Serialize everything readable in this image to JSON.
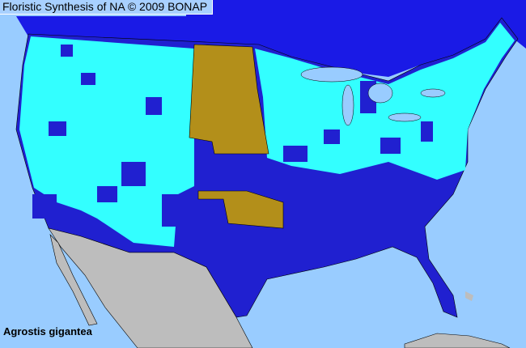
{
  "header": {
    "title": "Floristic Synthesis of NA © 2009 BONAP"
  },
  "species": {
    "name": "Agrostis gigantea"
  },
  "colors": {
    "ocean": "#99ccff",
    "canada": "#1a1ae6",
    "county_default": "#2020d0",
    "county_present": "#33ffff",
    "state_noxious_or_special": "#b38f1a",
    "mexico": "#bdbdbd"
  }
}
